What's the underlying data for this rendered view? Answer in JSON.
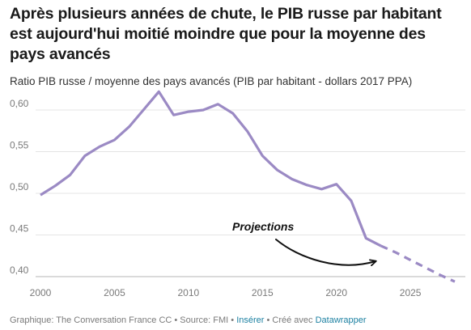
{
  "title": "Après plusieurs années de chute, le PIB russe par habitant est aujourd'hui moitié moindre que pour la moyenne des pays avancés",
  "subtitle": "Ratio PIB russe / moyenne des pays avancés (PIB par habitant - dollars 2017 PPA)",
  "footer": {
    "credit": "Graphique: The Conversation France CC • Source: FMI • ",
    "insert_link": "Insérer",
    "made_with": " • Créé avec ",
    "dw_link": "Datawrapper"
  },
  "colors": {
    "line": "#9b8ac4",
    "grid": "#e4e4e4",
    "link": "#1d81a2"
  },
  "chart_data": {
    "type": "line",
    "title": "Après plusieurs années de chute, le PIB russe par habitant est aujourd'hui moitié moindre que pour la moyenne des pays avancés",
    "subtitle": "Ratio PIB russe / moyenne des pays avancés (PIB par habitant - dollars 2017 PPA)",
    "xlabel": "",
    "ylabel": "",
    "xlim": [
      2000,
      2028
    ],
    "ylim": [
      0.4,
      0.63
    ],
    "x_ticks": [
      2000,
      2005,
      2010,
      2015,
      2020,
      2025
    ],
    "y_ticks": [
      0.4,
      0.45,
      0.5,
      0.55,
      0.6
    ],
    "y_tick_labels": [
      "0,40",
      "0,45",
      "0,50",
      "0,55",
      "0,60"
    ],
    "grid": "horizontal",
    "annotation": "Projections",
    "series": [
      {
        "style": "solid",
        "x": [
          2000,
          2001,
          2002,
          2003,
          2004,
          2005,
          2006,
          2007,
          2008,
          2009,
          2010,
          2011,
          2012,
          2013,
          2014,
          2015,
          2016,
          2017,
          2018,
          2019,
          2020,
          2021,
          2022,
          2023
        ],
        "values": [
          0.498,
          0.509,
          0.522,
          0.545,
          0.556,
          0.564,
          0.58,
          0.601,
          0.622,
          0.594,
          0.598,
          0.6,
          0.607,
          0.596,
          0.574,
          0.545,
          0.528,
          0.517,
          0.51,
          0.505,
          0.511,
          0.491,
          0.446,
          0.437
        ]
      },
      {
        "style": "dashed",
        "label": "Projections",
        "x": [
          2023,
          2024,
          2025,
          2026,
          2027,
          2028
        ],
        "values": [
          0.437,
          0.429,
          0.42,
          0.411,
          0.402,
          0.394
        ]
      }
    ]
  }
}
